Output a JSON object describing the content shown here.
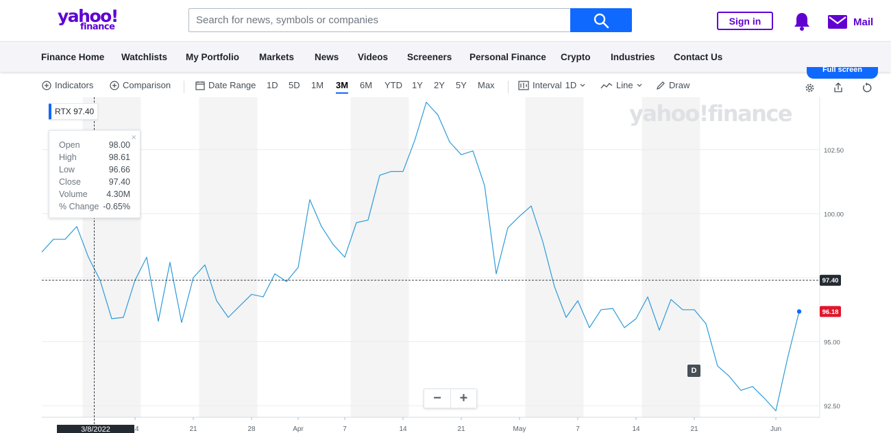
{
  "header": {
    "logo_line1": "yahoo!",
    "logo_line2": "finance",
    "search_placeholder": "Search for news, symbols or companies",
    "signin_label": "Sign in",
    "mail_label": "Mail"
  },
  "nav": [
    "Finance Home",
    "Watchlists",
    "My Portfolio",
    "Markets",
    "News",
    "Videos",
    "Screeners",
    "Personal Finance",
    "Crypto",
    "Industries",
    "Contact Us"
  ],
  "toolbar": {
    "indicators": "Indicators",
    "comparison": "Comparison",
    "date_range": "Date Range",
    "ranges": [
      "1D",
      "5D",
      "1M",
      "3M",
      "6M",
      "YTD",
      "1Y",
      "2Y",
      "5Y",
      "Max"
    ],
    "active_range": "3M",
    "interval_label": "Interval",
    "interval_value": "1D",
    "chart_type": "Line",
    "draw": "Draw",
    "full_screen": "Full screen"
  },
  "legend": {
    "symbol": "RTX",
    "value": "97.40"
  },
  "tooltip": [
    {
      "key": "Open",
      "value": "98.00"
    },
    {
      "key": "High",
      "value": "98.61"
    },
    {
      "key": "Low",
      "value": "96.66"
    },
    {
      "key": "Close",
      "value": "97.40"
    },
    {
      "key": "Volume",
      "value": "4.30M"
    },
    {
      "key": "% Change",
      "value": "-0.65%"
    }
  ],
  "watermark": "yahoo!finance",
  "dividend_badge": "D",
  "cursor_date": "3/8/2022",
  "colors": {
    "line": "#2c9ad8",
    "accent": "#0f69ff",
    "brand": "#6001d2",
    "last_price": "#e0162b"
  },
  "chart_data": {
    "type": "line",
    "symbol": "RTX",
    "y_ticks": [
      92.5,
      95.0,
      97.5,
      100.0,
      102.5
    ],
    "y_tick_labels": [
      "92.50",
      "95.00",
      "100.00",
      "102.50"
    ],
    "ylim": [
      92.05,
      104.55
    ],
    "x_tick_labels": [
      {
        "label": "14",
        "i": 8
      },
      {
        "label": "21",
        "i": 13
      },
      {
        "label": "28",
        "i": 18
      },
      {
        "label": "Apr",
        "i": 22
      },
      {
        "label": "7",
        "i": 26
      },
      {
        "label": "14",
        "i": 31
      },
      {
        "label": "21",
        "i": 36
      },
      {
        "label": "May",
        "i": 41
      },
      {
        "label": "7",
        "i": 46
      },
      {
        "label": "14",
        "i": 51
      },
      {
        "label": "21",
        "i": 56
      },
      {
        "label": "Jun",
        "i": 63
      }
    ],
    "weekend_shading": [
      [
        3.5,
        8.5
      ],
      [
        13.5,
        18.5
      ],
      [
        26.5,
        31.5
      ],
      [
        41.5,
        46.5
      ],
      [
        51.5,
        56.5
      ]
    ],
    "crosshair_value": 97.4,
    "crosshair_index": 4.5,
    "crosshair_label": "97.40",
    "last_value": 96.18,
    "last_label": "96.18",
    "values": [
      98.5,
      99.0,
      99.0,
      99.5,
      98.3,
      97.4,
      95.9,
      95.95,
      97.4,
      98.3,
      95.8,
      98.1,
      95.75,
      97.5,
      98.0,
      96.6,
      95.95,
      96.4,
      96.85,
      96.75,
      97.65,
      97.35,
      97.9,
      100.55,
      99.5,
      98.8,
      98.3,
      99.65,
      99.75,
      101.5,
      101.65,
      101.65,
      102.85,
      104.35,
      103.85,
      102.8,
      102.3,
      102.45,
      101.1,
      97.65,
      99.45,
      99.9,
      100.3,
      98.9,
      97.15,
      95.95,
      96.6,
      95.55,
      96.25,
      96.3,
      95.55,
      95.9,
      96.75,
      95.45,
      96.65,
      96.25,
      96.25,
      95.7,
      94.05,
      93.65,
      93.1,
      93.25,
      92.8,
      92.3,
      94.35,
      96.18
    ]
  }
}
